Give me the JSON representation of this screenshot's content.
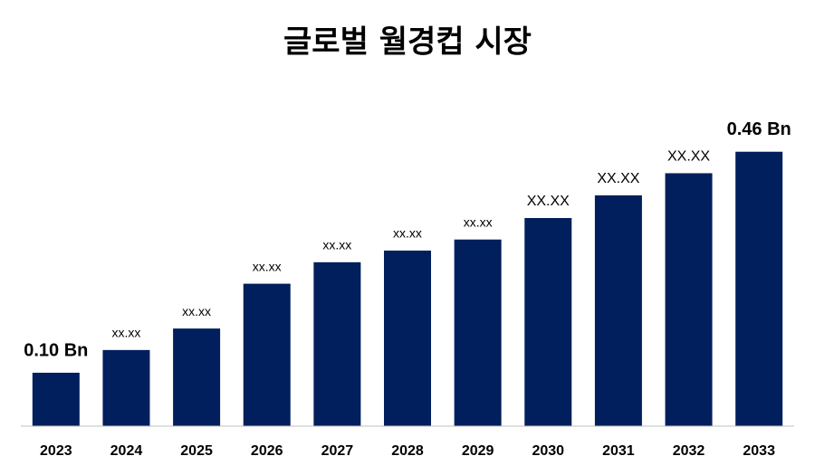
{
  "chart_data": {
    "type": "bar",
    "title": "글로벌 월경컵 시장",
    "categories": [
      "2023",
      "2024",
      "2025",
      "2026",
      "2027",
      "2028",
      "2029",
      "2030",
      "2031",
      "2032",
      "2033"
    ],
    "values": [
      0.1,
      0.137,
      0.172,
      0.245,
      0.28,
      0.299,
      0.317,
      0.352,
      0.389,
      0.425,
      0.46
    ],
    "value_labels": [
      "0.10 Bn",
      "xx.xx",
      "xx.xx",
      "xx.xx",
      "xx.xx",
      "xx.xx",
      "xx.xx",
      "XX.XX",
      "XX.XX",
      "XX.XX",
      "0.46 Bn"
    ],
    "color": "#001f5c",
    "ylim": [
      0.013,
      0.52
    ]
  }
}
